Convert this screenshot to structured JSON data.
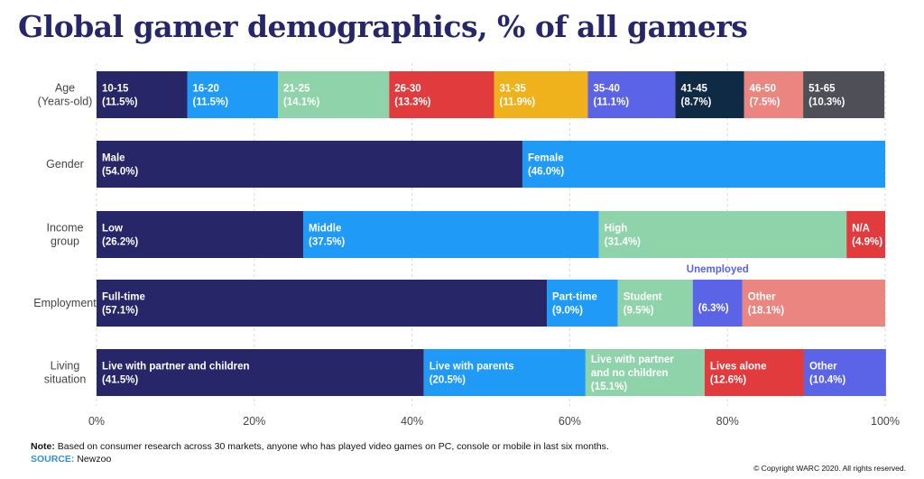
{
  "title": "Global gamer demographics, % of all gamers",
  "note_label": "Note:",
  "note_text": "Based on consumer research across 30 markets, anyone who has played video games on PC, console or mobile in last six months.",
  "source_label": "SOURCE:",
  "source_text": "Newzoo",
  "copyright": "© Copyright WARC 2020. All rights reserved.",
  "chart_data": {
    "type": "bar",
    "orientation": "horizontal-stacked-100",
    "xlim": [
      0,
      100
    ],
    "xticks": [
      "0%",
      "20%",
      "40%",
      "60%",
      "80%",
      "100%"
    ],
    "rows": [
      {
        "label": [
          "Age",
          "(Years-old)"
        ],
        "segments": [
          {
            "name": "10-15",
            "pct": "(11.5%)",
            "value": 11.5,
            "color": "#262669"
          },
          {
            "name": "16-20",
            "pct": "(11.5%)",
            "value": 11.5,
            "color": "#1f9bf7"
          },
          {
            "name": "21-25",
            "pct": "(14.1%)",
            "value": 14.1,
            "color": "#8fd3ab"
          },
          {
            "name": "26-30",
            "pct": "(13.3%)",
            "value": 13.3,
            "color": "#e23b3e"
          },
          {
            "name": "31-35",
            "pct": "(11.9%)",
            "value": 11.9,
            "color": "#f0b21c"
          },
          {
            "name": "35-40",
            "pct": "(11.1%)",
            "value": 11.1,
            "color": "#5b63e6"
          },
          {
            "name": "41-45",
            "pct": "(8.7%)",
            "value": 8.7,
            "color": "#0e2a45"
          },
          {
            "name": "46-50",
            "pct": "(7.5%)",
            "value": 7.5,
            "color": "#ea8580"
          },
          {
            "name": "51-65",
            "pct": "(10.3%)",
            "value": 10.3,
            "color": "#4f4f57"
          }
        ]
      },
      {
        "label": [
          "Gender"
        ],
        "segments": [
          {
            "name": "Male",
            "pct": "(54.0%)",
            "value": 54.0,
            "color": "#262669"
          },
          {
            "name": "Female",
            "pct": "(46.0%)",
            "value": 46.0,
            "color": "#1f9bf7"
          }
        ]
      },
      {
        "label": [
          "Income",
          "group"
        ],
        "segments": [
          {
            "name": "Low",
            "pct": "(26.2%)",
            "value": 26.2,
            "color": "#262669"
          },
          {
            "name": "Middle",
            "pct": "(37.5%)",
            "value": 37.5,
            "color": "#1f9bf7"
          },
          {
            "name": "High",
            "pct": "(31.4%)",
            "value": 31.4,
            "color": "#8fd3ab"
          },
          {
            "name": "N/A",
            "pct": "(4.9%)",
            "value": 4.9,
            "color": "#e23b3e"
          }
        ]
      },
      {
        "label": [
          "Employment"
        ],
        "segments": [
          {
            "name": "Full-time",
            "pct": "(57.1%)",
            "value": 57.1,
            "color": "#262669"
          },
          {
            "name": "Part-time",
            "pct": "(9.0%)",
            "value": 9.0,
            "color": "#1f9bf7"
          },
          {
            "name": "Student",
            "pct": "(9.5%)",
            "value": 9.5,
            "color": "#8fd3ab"
          },
          {
            "name": "Unemployed",
            "pct": "(6.3%)",
            "value": 6.3,
            "color": "#5b63e6",
            "name_outside": true
          },
          {
            "name": "Other",
            "pct": "(18.1%)",
            "value": 18.1,
            "color": "#ea8580"
          }
        ]
      },
      {
        "label": [
          "Living",
          "situation"
        ],
        "segments": [
          {
            "name": "Live with partner and children",
            "pct": "(41.5%)",
            "value": 41.5,
            "color": "#262669"
          },
          {
            "name": "Live with parents",
            "pct": "(20.5%)",
            "value": 20.5,
            "color": "#1f9bf7"
          },
          {
            "name": "Live with partner\nand no children",
            "pct": "(15.1%)",
            "value": 15.1,
            "color": "#8fd3ab"
          },
          {
            "name": "Lives alone",
            "pct": "(12.6%)",
            "value": 12.6,
            "color": "#e23b3e"
          },
          {
            "name": "Other",
            "pct": "(10.4%)",
            "value": 10.4,
            "color": "#5b63e6"
          }
        ]
      }
    ]
  }
}
